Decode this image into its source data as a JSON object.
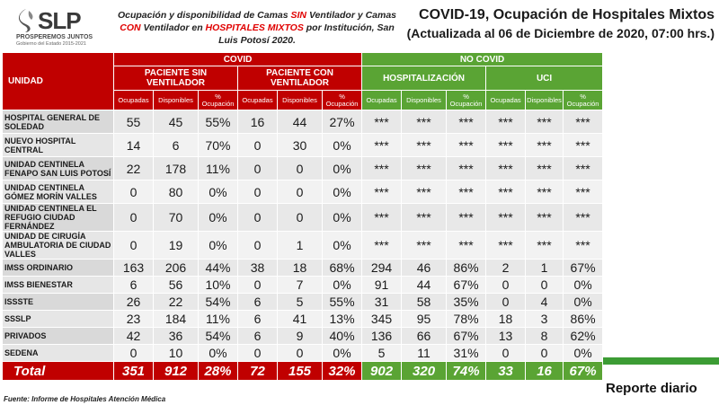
{
  "logo": {
    "text": "SLP",
    "sub1": "PROSPEREMOS JUNTOS",
    "sub2": "Gobierno del Estado 2015-2021"
  },
  "subtitle": {
    "p1": "Ocupación y disponibilidad de Camas ",
    "sin": "SIN",
    "p2": " Ventilador y Camas ",
    "con": "CON",
    "p3": " Ventilador en ",
    "mixtos": "HOSPITALES MIXTOS",
    "p4": " por Institución, San Luis Potosí 2020."
  },
  "title": {
    "line1": "COVID-19, Ocupación de Hospitales Mixtos",
    "line2": "(Actualizada al 06 de Diciembre de 2020, 07:00 hrs.)"
  },
  "headers": {
    "unidad": "UNIDAD",
    "covid": "COVID",
    "no_covid": "NO COVID",
    "sin_vent": "PACIENTE SIN VENTILADOR",
    "con_vent": "PACIENTE CON VENTILADOR",
    "hosp": "HOSPITALIZACIÓN",
    "uci": "UCI",
    "ocupadas": "Ocupadas",
    "disponibles": "Disponibles",
    "pct": "% Ocupación"
  },
  "rows": [
    {
      "name": "HOSPITAL GENERAL DE SOLEDAD",
      "v": [
        "55",
        "45",
        "55%",
        "16",
        "44",
        "27%",
        "***",
        "***",
        "***",
        "***",
        "***",
        "***"
      ]
    },
    {
      "name": "NUEVO HOSPITAL CENTRAL",
      "v": [
        "14",
        "6",
        "70%",
        "0",
        "30",
        "0%",
        "***",
        "***",
        "***",
        "***",
        "***",
        "***"
      ]
    },
    {
      "name": "UNIDAD CENTINELA FENAPO SAN LUIS POTOSÍ",
      "v": [
        "22",
        "178",
        "11%",
        "0",
        "0",
        "0%",
        "***",
        "***",
        "***",
        "***",
        "***",
        "***"
      ]
    },
    {
      "name": "UNIDAD CENTINELA GÓMEZ MORÍN VALLES",
      "v": [
        "0",
        "80",
        "0%",
        "0",
        "0",
        "0%",
        "***",
        "***",
        "***",
        "***",
        "***",
        "***"
      ]
    },
    {
      "name": "UNIDAD CENTINELA EL REFUGIO CIUDAD FERNÁNDEZ",
      "v": [
        "0",
        "70",
        "0%",
        "0",
        "0",
        "0%",
        "***",
        "***",
        "***",
        "***",
        "***",
        "***"
      ]
    },
    {
      "name": "UNIDAD DE CIRUGÍA AMBULATORIA DE CIUDAD VALLES",
      "v": [
        "0",
        "19",
        "0%",
        "0",
        "1",
        "0%",
        "***",
        "***",
        "***",
        "***",
        "***",
        "***"
      ]
    },
    {
      "name": "IMSS ORDINARIO",
      "v": [
        "163",
        "206",
        "44%",
        "38",
        "18",
        "68%",
        "294",
        "46",
        "86%",
        "2",
        "1",
        "67%"
      ]
    },
    {
      "name": "IMSS BIENESTAR",
      "v": [
        "6",
        "56",
        "10%",
        "0",
        "7",
        "0%",
        "91",
        "44",
        "67%",
        "0",
        "0",
        "0%"
      ]
    },
    {
      "name": "ISSSTE",
      "v": [
        "26",
        "22",
        "54%",
        "6",
        "5",
        "55%",
        "31",
        "58",
        "35%",
        "0",
        "4",
        "0%"
      ]
    },
    {
      "name": "SSSLP",
      "v": [
        "23",
        "184",
        "11%",
        "6",
        "41",
        "13%",
        "345",
        "95",
        "78%",
        "18",
        "3",
        "86%"
      ]
    },
    {
      "name": "PRIVADOS",
      "v": [
        "42",
        "36",
        "54%",
        "6",
        "9",
        "40%",
        "136",
        "66",
        "67%",
        "13",
        "8",
        "62%"
      ]
    },
    {
      "name": "SEDENA",
      "v": [
        "0",
        "10",
        "0%",
        "0",
        "0",
        "0%",
        "5",
        "11",
        "31%",
        "0",
        "0",
        "0%"
      ]
    }
  ],
  "total": {
    "label": "Total",
    "v": [
      "351",
      "912",
      "28%",
      "72",
      "155",
      "32%",
      "902",
      "320",
      "74%",
      "33",
      "16",
      "67%"
    ]
  },
  "reporte": "Reporte diario",
  "fuente": "Fuente: Informe de Hospitales Atención Médica",
  "colors": {
    "covid_red": "#c00000",
    "nocovid_green": "#5aa434",
    "accent_red_text": "#e00000"
  }
}
